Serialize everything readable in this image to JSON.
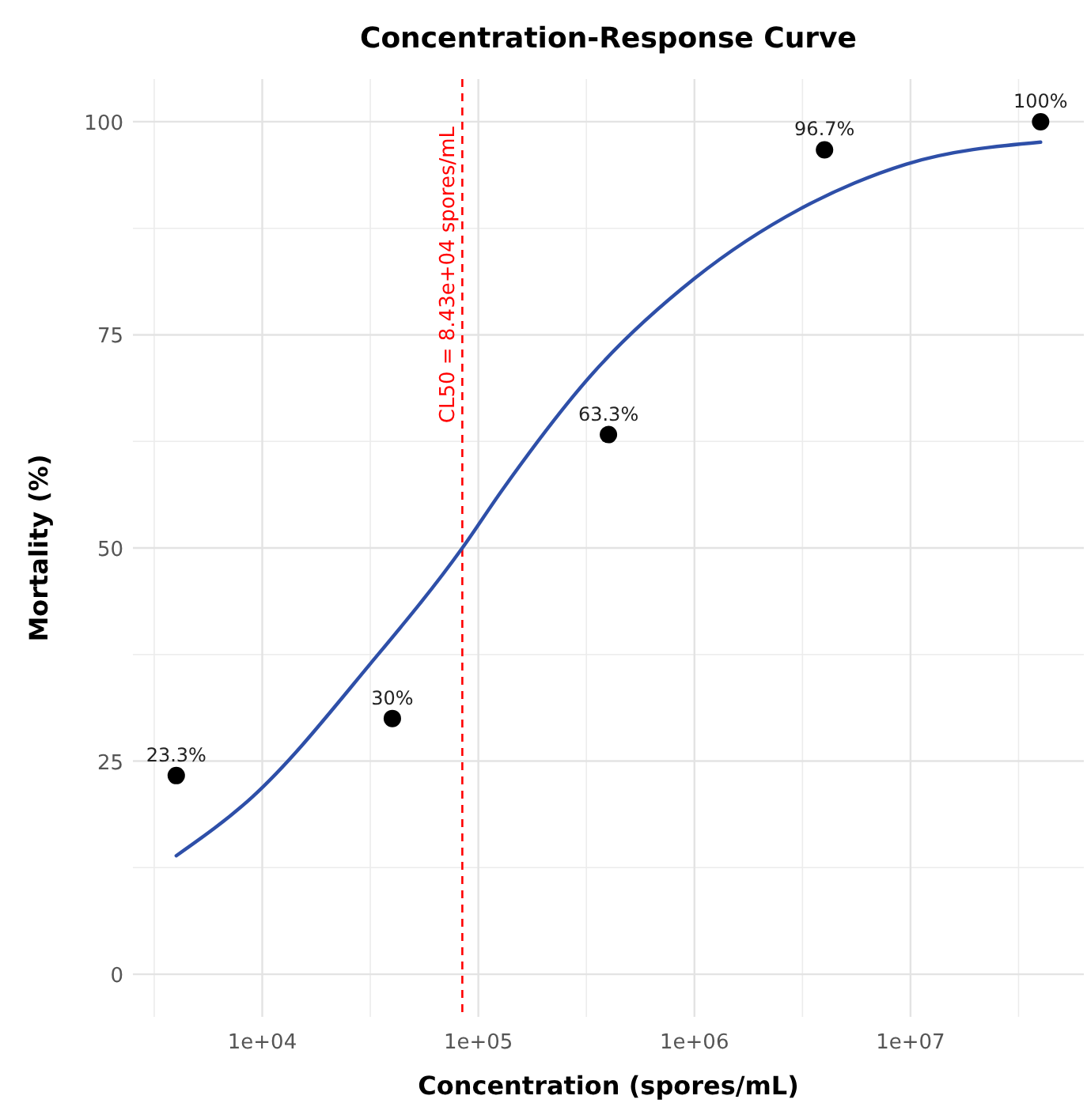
{
  "chart_data": {
    "type": "scatter",
    "title": "Concentration-Response Curve",
    "xlabel": "Concentration (spores/mL)",
    "ylabel": "Mortality (%)",
    "log": "x",
    "xlim": [
      2520,
      63400000
    ],
    "ylim": [
      -5,
      105
    ],
    "xticks": [
      {
        "value": 10000,
        "label": "1e+04"
      },
      {
        "value": 100000,
        "label": "1e+05"
      },
      {
        "value": 1000000,
        "label": "1e+06"
      },
      {
        "value": 10000000,
        "label": "1e+07"
      }
    ],
    "yticks": [
      0,
      25,
      50,
      75,
      100
    ],
    "grid": true,
    "series": [
      {
        "type": "line",
        "color": "#2e4fa8",
        "marker": "none",
        "line_style": "solid",
        "x": [
          4000,
          9000,
          31600,
          84300,
          129000,
          339000,
          1000000,
          3100000,
          5500000,
          9500000,
          40000000
        ],
        "values": [
          13.9,
          20.8,
          36.4,
          50,
          56.8,
          70.5,
          81.6,
          89.8,
          92.8,
          95.0,
          97.6
        ]
      },
      {
        "color": "#000000",
        "marker": "circle",
        "x": [
          4000,
          40000,
          400000,
          4000000,
          40000000
        ],
        "values": [
          23.3,
          30,
          63.3,
          96.7,
          100
        ],
        "value_labels": [
          "23.3%",
          "30%",
          "63.3%",
          "96.7%",
          "100%"
        ]
      }
    ],
    "annotations": [
      "CL50 = 8.43e+04 spores/mL"
    ],
    "ref_lines": [
      {
        "axis": "x",
        "value": 84300,
        "color": "#ff0000",
        "line_style": "dashed"
      }
    ]
  }
}
